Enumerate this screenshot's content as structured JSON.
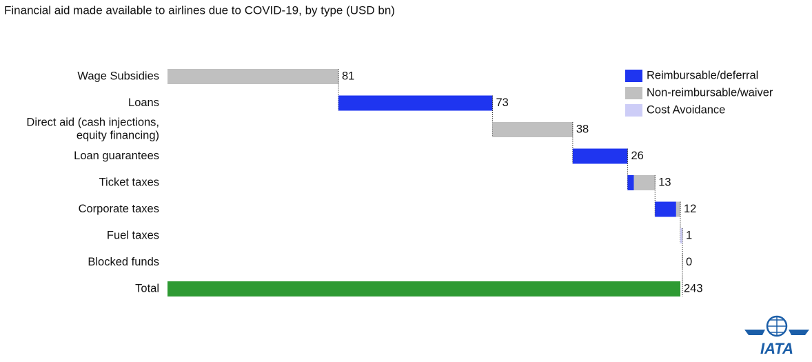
{
  "chart_data": {
    "type": "waterfall",
    "title": "Financial aid made available to airlines due to COVID-19, by type (USD bn)",
    "categories": [
      "Wage Subsidies",
      "Loans",
      "Direct aid (cash injections,\nequity financing)",
      "Loan guarantees",
      "Ticket taxes",
      "Corporate taxes",
      "Fuel taxes",
      "Blocked funds",
      "Total"
    ],
    "totals": [
      81,
      73,
      38,
      26,
      13,
      12,
      1,
      0,
      243
    ],
    "series": [
      {
        "name": "Reimbursable/deferral",
        "color": "#1f35f0",
        "values": [
          0,
          73,
          0,
          26,
          3,
          10,
          0,
          0,
          null
        ]
      },
      {
        "name": "Non-reimbursable/waiver",
        "color": "#c0c0c0",
        "values": [
          81,
          0,
          38,
          0,
          10,
          2,
          0,
          0,
          null
        ]
      },
      {
        "name": "Cost Avoidance",
        "color": "#cdcdf7",
        "values": [
          0,
          0,
          0,
          0,
          0,
          0,
          1,
          0,
          null
        ]
      }
    ],
    "total_color": "#2e9a33",
    "legend": "top-right",
    "logo": "IATA"
  }
}
